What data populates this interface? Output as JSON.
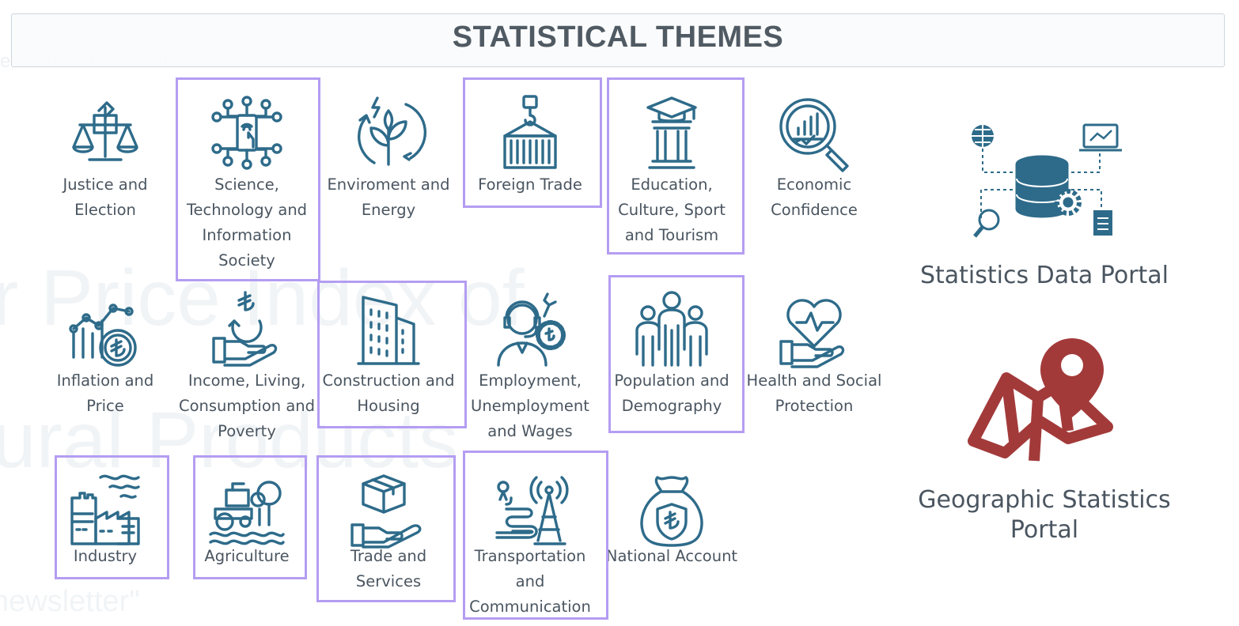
{
  "background": {
    "nav_ghost": "ents     Announcements",
    "big_ghost_1": "r Price Index of",
    "big_ghost_2": "ural Products",
    "newsletter_ghost": "newsletter\""
  },
  "header": {
    "title": "STATISTICAL THEMES"
  },
  "colors": {
    "icon": "#2e6b8a",
    "highlight": "#b49df2",
    "geo_red": "#a33a3a",
    "text": "#4a5560"
  },
  "themes": [
    {
      "label": "Justice and\nElection",
      "icon": "scales-ballot-icon",
      "highlighted": false
    },
    {
      "label": "Science,\nTechnology and\nInformation\nSociety",
      "icon": "smartphone-network-icon",
      "highlighted": true
    },
    {
      "label": "Enviroment and\nEnergy",
      "icon": "plant-energy-icon",
      "highlighted": false
    },
    {
      "label": "Foreign Trade",
      "icon": "cargo-container-icon",
      "highlighted": true
    },
    {
      "label": "Education,\nCulture, Sport\nand Tourism",
      "icon": "graduation-column-icon",
      "highlighted": true
    },
    {
      "label": "Economic\nConfidence",
      "icon": "magnifier-chart-icon",
      "highlighted": false
    },
    {
      "label": "Inflation and\nPrice",
      "icon": "chart-coin-icon",
      "highlighted": false
    },
    {
      "label": "Income, Living,\nConsumption and\nPoverty",
      "icon": "hand-coin-icon",
      "highlighted": false
    },
    {
      "label": "Construction and\nHousing",
      "icon": "building-icon",
      "highlighted": true
    },
    {
      "label": "Employment,\nUnemployment\nand Wages",
      "icon": "worker-gear-icon",
      "highlighted": false
    },
    {
      "label": "Population and\nDemography",
      "icon": "people-group-icon",
      "highlighted": true
    },
    {
      "label": "Health and Social\nProtection",
      "icon": "heart-hand-icon",
      "highlighted": false
    },
    {
      "label": "Industry",
      "icon": "factory-icon",
      "highlighted": true
    },
    {
      "label": "Agriculture",
      "icon": "tractor-icon",
      "highlighted": true
    },
    {
      "label": "Trade and\nServices",
      "icon": "box-hand-icon",
      "highlighted": true
    },
    {
      "label": "Transportation\nand\nCommunication",
      "icon": "road-antenna-icon",
      "highlighted": true
    },
    {
      "label": "National Account",
      "icon": "money-bag-icon",
      "highlighted": false
    }
  ],
  "portals": {
    "data_portal": {
      "title": "Statistics Data Portal",
      "icon": "database-network-icon"
    },
    "geo_portal": {
      "title": "Geographic Statistics\nPortal",
      "icon": "map-pin-icon"
    }
  }
}
